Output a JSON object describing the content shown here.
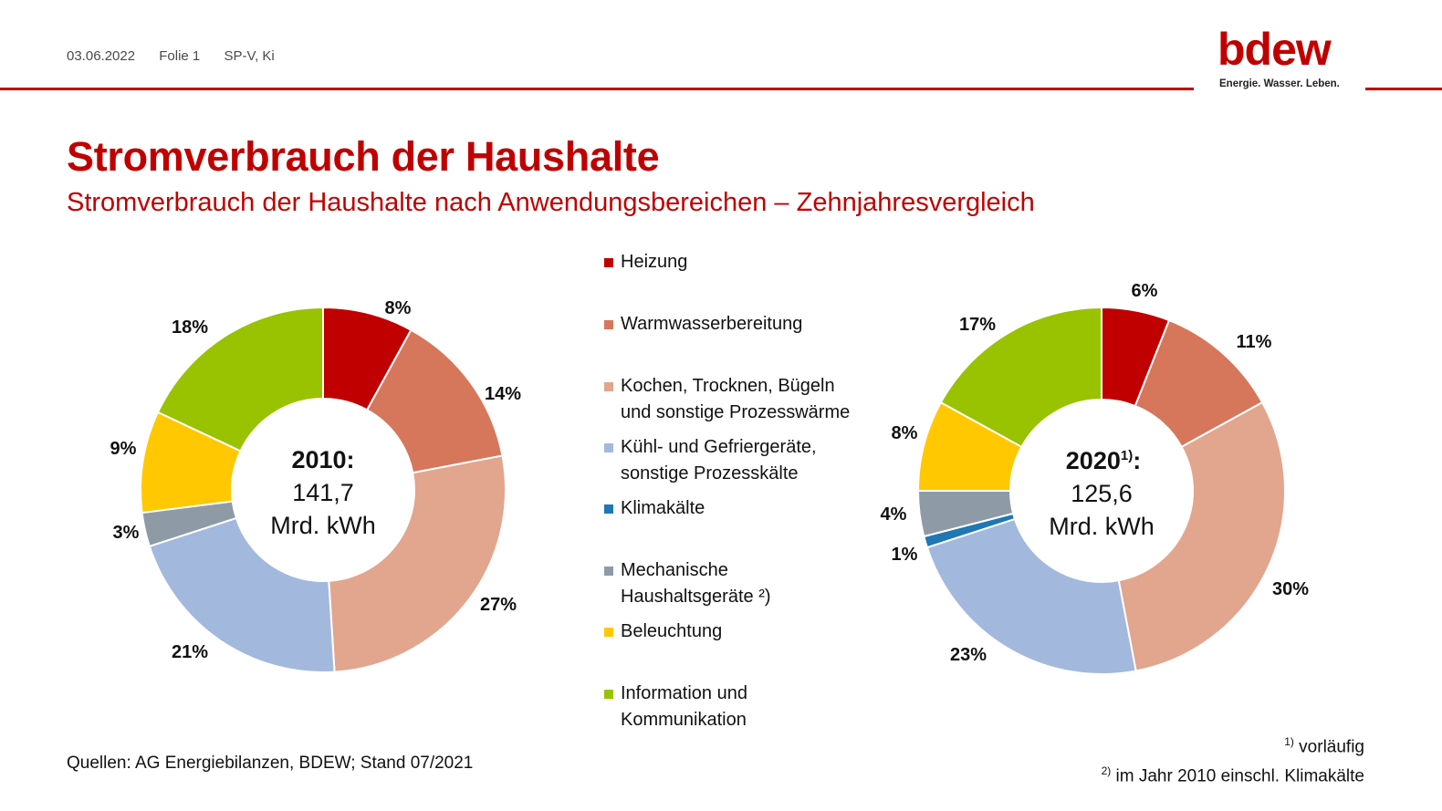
{
  "header": {
    "date": "03.06.2022",
    "slide": "Folie 1",
    "author": "SP-V, Ki",
    "logo_word": "bdew",
    "logo_tagline": "Energie. Wasser. Leben."
  },
  "title": "Stromverbrauch der Haushalte",
  "subtitle": "Stromverbrauch der Haushalte nach Anwendungsbereichen – Zehnjahresvergleich",
  "legend": [
    {
      "label": "Heizung",
      "color": "#c00000"
    },
    {
      "label": "Warmwasserbereitung",
      "color": "#d6775c"
    },
    {
      "label": "Kochen, Trocknen, Bügeln\nund sonstige Prozesswärme",
      "color": "#e2a58e"
    },
    {
      "label": "Kühl- und Gefriergeräte,\nsonstige Prozesskälte",
      "color": "#a3b8dd"
    },
    {
      "label": "Klimakälte",
      "color": "#1f77b4"
    },
    {
      "label": "Mechanische\nHaushaltsgeräte ²)",
      "color": "#8e9ba6"
    },
    {
      "label": "Beleuchtung",
      "color": "#ffc800"
    },
    {
      "label": "Information und\nKommunikation",
      "color": "#99c200"
    }
  ],
  "chart_data": [
    {
      "type": "pie",
      "variant": "donut",
      "center_year": "2010:",
      "center_year_sup": "",
      "center_value": "141,7",
      "center_unit": "Mrd. kWh",
      "slices": [
        {
          "category": "Heizung",
          "value": 8,
          "label": "8%"
        },
        {
          "category": "Warmwasserbereitung",
          "value": 14,
          "label": "14%"
        },
        {
          "category": "Kochen, Trocknen, Bügeln und sonstige Prozesswärme",
          "value": 27,
          "label": "27%"
        },
        {
          "category": "Kühl- und Gefriergeräte, sonstige Prozesskälte",
          "value": 21,
          "label": "21%"
        },
        {
          "category": "Mechanische Haushaltsgeräte",
          "value": 3,
          "label": "3%"
        },
        {
          "category": "Beleuchtung",
          "value": 9,
          "label": "9%"
        },
        {
          "category": "Information und Kommunikation",
          "value": 18,
          "label": "18%"
        }
      ]
    },
    {
      "type": "pie",
      "variant": "donut",
      "center_year": "2020",
      "center_year_sup": "1)",
      "center_year_suffix": ":",
      "center_value": "125,6",
      "center_unit": "Mrd. kWh",
      "slices": [
        {
          "category": "Heizung",
          "value": 6,
          "label": "6%"
        },
        {
          "category": "Warmwasserbereitung",
          "value": 11,
          "label": "11%"
        },
        {
          "category": "Kochen, Trocknen, Bügeln und sonstige Prozesswärme",
          "value": 30,
          "label": "30%"
        },
        {
          "category": "Kühl- und Gefriergeräte, sonstige Prozesskälte",
          "value": 23,
          "label": "23%"
        },
        {
          "category": "Klimakälte",
          "value": 1,
          "label": "1%"
        },
        {
          "category": "Mechanische Haushaltsgeräte",
          "value": 4,
          "label": "4%"
        },
        {
          "category": "Beleuchtung",
          "value": 8,
          "label": "8%"
        },
        {
          "category": "Information und Kommunikation",
          "value": 17,
          "label": "17%"
        }
      ]
    }
  ],
  "footer": {
    "sources": "Quellen: AG Energiebilanzen, BDEW; Stand 07/2021",
    "footnote1_mark": "1)",
    "footnote1_text": " vorläufig",
    "footnote2_mark": "2)",
    "footnote2_text": " im Jahr 2010 einschl. Klimakälte"
  }
}
